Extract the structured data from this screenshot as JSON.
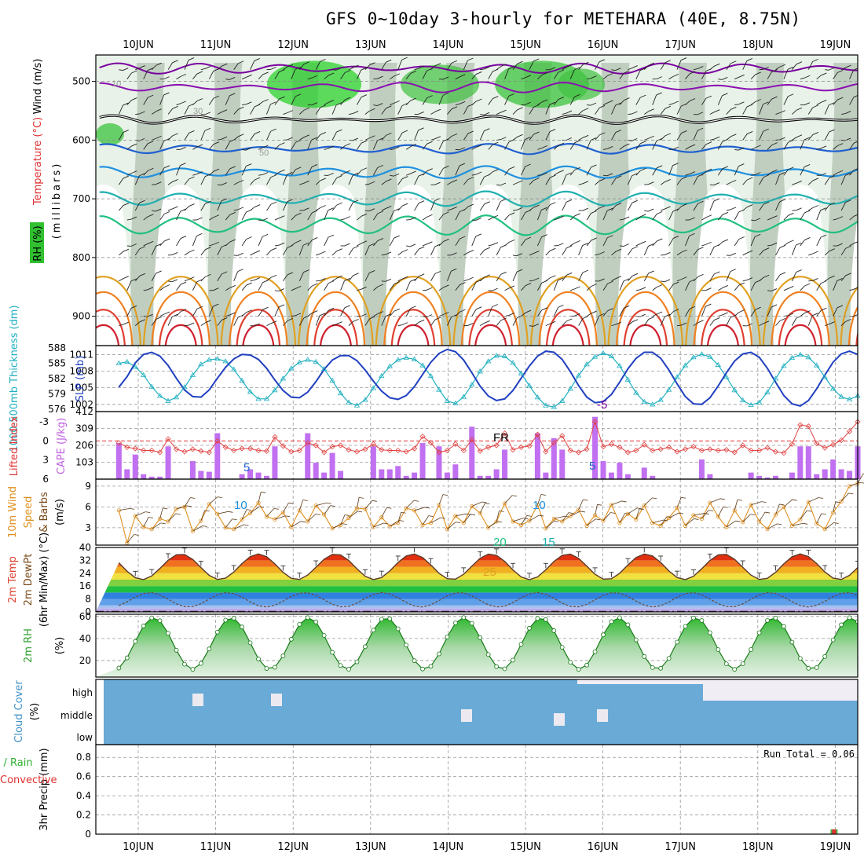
{
  "header": {
    "title": "GFS 0~10day 3-hourly for METEHARA (40E, 8.75N)"
  },
  "chart_data": [
    {
      "type": "heatmap",
      "name": "upper-air cross-section",
      "days": [
        "10JUN",
        "11JUN",
        "12JUN",
        "13JUN",
        "14JUN",
        "15JUN",
        "16JUN",
        "17JUN",
        "18JUN",
        "19JUN"
      ],
      "ylabel": "(millibars)",
      "ylabel_parts": [
        "Wind (m/s)",
        "Temperature (°C)",
        "RH (%)"
      ],
      "y_ticks": [
        500,
        600,
        700,
        800,
        900
      ],
      "y_range": [
        950,
        455
      ],
      "isotherm_labels": [
        "-5",
        "FR",
        "5",
        "10",
        "15",
        "20",
        "25"
      ],
      "rh_labels": [
        "10",
        "30",
        "50"
      ],
      "freezing_level_mb": 565
    },
    {
      "type": "line",
      "name": "thickness and slp",
      "ylabel_left": "1000-500mb Thickness (dm)",
      "ylabel_right": "SLP (mb)",
      "left_ticks": [
        576,
        579,
        582,
        585,
        588
      ],
      "right_ticks": [
        1002,
        1005,
        1008,
        1011
      ],
      "series": [
        {
          "name": "1000-500mb Thickness",
          "color": "#20b0c0",
          "values": [
            585.0,
            585.3,
            584.3,
            582.7,
            580.4,
            578.6,
            577.6,
            578.3,
            580.3,
            582.7,
            584.8,
            585.7,
            585.9,
            585.4,
            583.8,
            581.6,
            579.4,
            578.0,
            578.0,
            579.7,
            582.0,
            584.0,
            585.2,
            585.7,
            585.3,
            583.9,
            581.6,
            579.1,
            577.3,
            576.7,
            577.8,
            580.1,
            582.5,
            584.4,
            585.7,
            586.1,
            585.8,
            584.6,
            582.5,
            579.8,
            577.6,
            577.1,
            578.4,
            580.8,
            583.4,
            585.4,
            586.5,
            586.4,
            585.1,
            583.0,
            580.6,
            578.3,
            576.7,
            576.4,
            577.6,
            580.0,
            582.6,
            584.8,
            586.3,
            587.0,
            586.4,
            584.5,
            581.8,
            579.2,
            577.4,
            576.9,
            577.8,
            579.8,
            582.3,
            584.6,
            586.2,
            586.8,
            586.3,
            584.7,
            582.3,
            579.7,
            577.7,
            576.8,
            577.3,
            579.3,
            582.0,
            584.5,
            586.1,
            586.7,
            586.2,
            584.6,
            582.3,
            580.0,
            578.4,
            577.9,
            578.6
          ]
        },
        {
          "name": "SLP",
          "color": "#2040c0",
          "values": [
            1005.1,
            1007.0,
            1009.5,
            1011.0,
            1011.4,
            1010.7,
            1009.0,
            1006.7,
            1004.6,
            1003.4,
            1003.3,
            1004.6,
            1006.7,
            1008.7,
            1010.2,
            1011.0,
            1010.9,
            1010.1,
            1008.5,
            1006.4,
            1004.5,
            1003.3,
            1003.2,
            1004.2,
            1006.1,
            1008.3,
            1010.0,
            1010.8,
            1010.8,
            1009.9,
            1008.2,
            1006.2,
            1004.4,
            1003.2,
            1002.9,
            1003.6,
            1005.2,
            1007.4,
            1009.6,
            1011.2,
            1011.9,
            1011.5,
            1010.0,
            1007.7,
            1005.3,
            1003.5,
            1002.7,
            1003.0,
            1004.5,
            1006.7,
            1008.9,
            1010.7,
            1011.6,
            1011.4,
            1010.1,
            1007.9,
            1005.4,
            1003.3,
            1002.3,
            1002.5,
            1003.8,
            1006.0,
            1008.4,
            1010.3,
            1011.4,
            1011.4,
            1010.3,
            1008.2,
            1005.7,
            1003.4,
            1002.1,
            1002.0,
            1003.2,
            1005.3,
            1007.7,
            1009.8,
            1011.1,
            1011.4,
            1010.5,
            1008.5,
            1006.0,
            1003.6,
            1002.1,
            1001.7,
            1002.7,
            1004.8,
            1007.3,
            1009.6,
            1011.1,
            1011.6,
            1011.0
          ]
        }
      ]
    },
    {
      "type": "bar",
      "name": "cape and lifted index",
      "ylabel_left": "Lifted Index",
      "ylabel_right": "CAPE (J/kg)",
      "left_ticks": [
        -3,
        0,
        3,
        6
      ],
      "right_ticks": [
        103,
        206,
        309,
        412
      ],
      "cape": [
        220,
        60,
        150,
        30,
        15,
        15,
        200,
        0,
        0,
        110,
        50,
        45,
        280,
        0,
        0,
        30,
        60,
        40,
        20,
        200,
        0,
        0,
        0,
        280,
        100,
        40,
        160,
        50,
        0,
        0,
        0,
        200,
        60,
        60,
        80,
        20,
        40,
        220,
        0,
        200,
        40,
        90,
        0,
        320,
        20,
        20,
        60,
        180,
        0,
        0,
        0,
        280,
        40,
        250,
        180,
        0,
        0,
        0,
        380,
        110,
        40,
        100,
        30,
        0,
        70,
        20,
        0,
        0,
        0,
        0,
        0,
        120,
        30,
        0,
        0,
        0,
        0,
        40,
        20,
        10,
        20,
        0,
        40,
        200,
        200,
        30,
        60,
        120,
        60,
        50,
        200
      ],
      "lifted_index": [
        0.3,
        1.0,
        1.2,
        1.5,
        1.5,
        1.8,
        -0.3,
        1.3,
        1.7,
        1.3,
        1.6,
        1.8,
        0.0,
        1.0,
        1.5,
        1.2,
        1.2,
        1.5,
        1.6,
        -0.6,
        0.8,
        1.7,
        1.5,
        0.3,
        0.7,
        1.8,
        0.9,
        0.7,
        1.4,
        1.7,
        1.3,
        0.5,
        1.4,
        1.5,
        1.5,
        1.7,
        1.2,
        -0.7,
        0.3,
        1.8,
        1.5,
        0.5,
        1.5,
        -0.2,
        1.6,
        1.0,
        0.7,
        -1.2,
        1.4,
        1.0,
        0.8,
        -1.0,
        1.7,
        0.3,
        -0.8,
        1.5,
        1.8,
        1.3,
        -3.0,
        0.9,
        0.5,
        1.0,
        1.8,
        1.5,
        0.6,
        1.5,
        1.3,
        1.0,
        1.7,
        1.3,
        0.9,
        1.5,
        1.3,
        1.5,
        1.4,
        1.8,
        0.7,
        1.5,
        1.5,
        1.1,
        1.7,
        1.9,
        0.5,
        -2.5,
        -2.3,
        0.4,
        1.1,
        0.6,
        -0.1,
        -1.5,
        -3.0
      ]
    },
    {
      "type": "line",
      "name": "10m wind",
      "ylabel_parts": [
        "10m Wind",
        "Speed",
        "& Barbs",
        "(m/s)"
      ],
      "y_ticks": [
        3,
        6,
        9
      ],
      "ylim": [
        0,
        10
      ],
      "values": [
        5.5,
        0.8,
        4.7,
        3.1,
        2.8,
        4.3,
        3.9,
        5.7,
        6.0,
        2.5,
        4.0,
        6.4,
        5.0,
        3.0,
        2.8,
        4.2,
        5.1,
        6.6,
        4.6,
        4.2,
        5.2,
        3.1,
        5.5,
        3.9,
        6.2,
        4.9,
        2.9,
        3.4,
        4.4,
        5.8,
        5.7,
        3.1,
        4.5,
        3.2,
        3.7,
        5.8,
        5.5,
        3.4,
        3.7,
        6.3,
        2.8,
        4.7,
        3.7,
        6.1,
        5.1,
        3.0,
        3.9,
        6.5,
        3.9,
        3.4,
        4.0,
        6.3,
        2.9,
        4.3,
        3.9,
        4.7,
        5.6,
        3.3,
        4.8,
        4.0,
        6.3,
        3.7,
        5.0,
        4.2,
        6.2,
        3.7,
        3.3,
        4.4,
        5.9,
        3.3,
        4.8,
        4.3,
        6.6,
        4.6,
        3.1,
        5.5,
        3.8,
        6.3,
        3.9,
        2.8,
        4.9,
        6.0,
        3.3,
        4.2,
        6.7,
        3.6,
        2.8,
        5.2,
        6.8,
        9.0,
        9.4
      ]
    },
    {
      "type": "area",
      "name": "2m temperature and dewpoint",
      "ylabel_parts": [
        "2m Temp",
        "2m DewPt",
        "(6hr Min/Max) (°C)"
      ],
      "y_ticks": [
        0,
        8,
        16,
        24,
        32,
        40
      ],
      "ylim": [
        0,
        40
      ],
      "temp_min": 20,
      "temp_max": 36,
      "dewpoint_min": 3,
      "dewpoint_max": 12
    },
    {
      "type": "area",
      "name": "2m relative humidity",
      "ylabel_parts": [
        "2m RH",
        "(%)"
      ],
      "y_ticks": [
        20,
        40,
        60
      ],
      "ylim": [
        0,
        60
      ],
      "rh_min": 12,
      "rh_max": 59
    },
    {
      "type": "bar",
      "name": "cloud cover",
      "ylabel_parts": [
        "Cloud Cover",
        "(%)"
      ],
      "levels": [
        "high",
        "middle",
        "low"
      ]
    },
    {
      "type": "bar",
      "name": "3hr precipitation",
      "ylabel_parts": [
        "3hr Precip (mm)",
        "Total / Rain",
        "Convective"
      ],
      "y_ticks": [
        0,
        0.2,
        0.4,
        0.6,
        0.8
      ],
      "ylim": [
        0,
        0.9
      ],
      "run_total_label": "Run Total = 0.06",
      "bars": [
        {
          "day_index": 9,
          "value": 0.05
        }
      ]
    }
  ]
}
